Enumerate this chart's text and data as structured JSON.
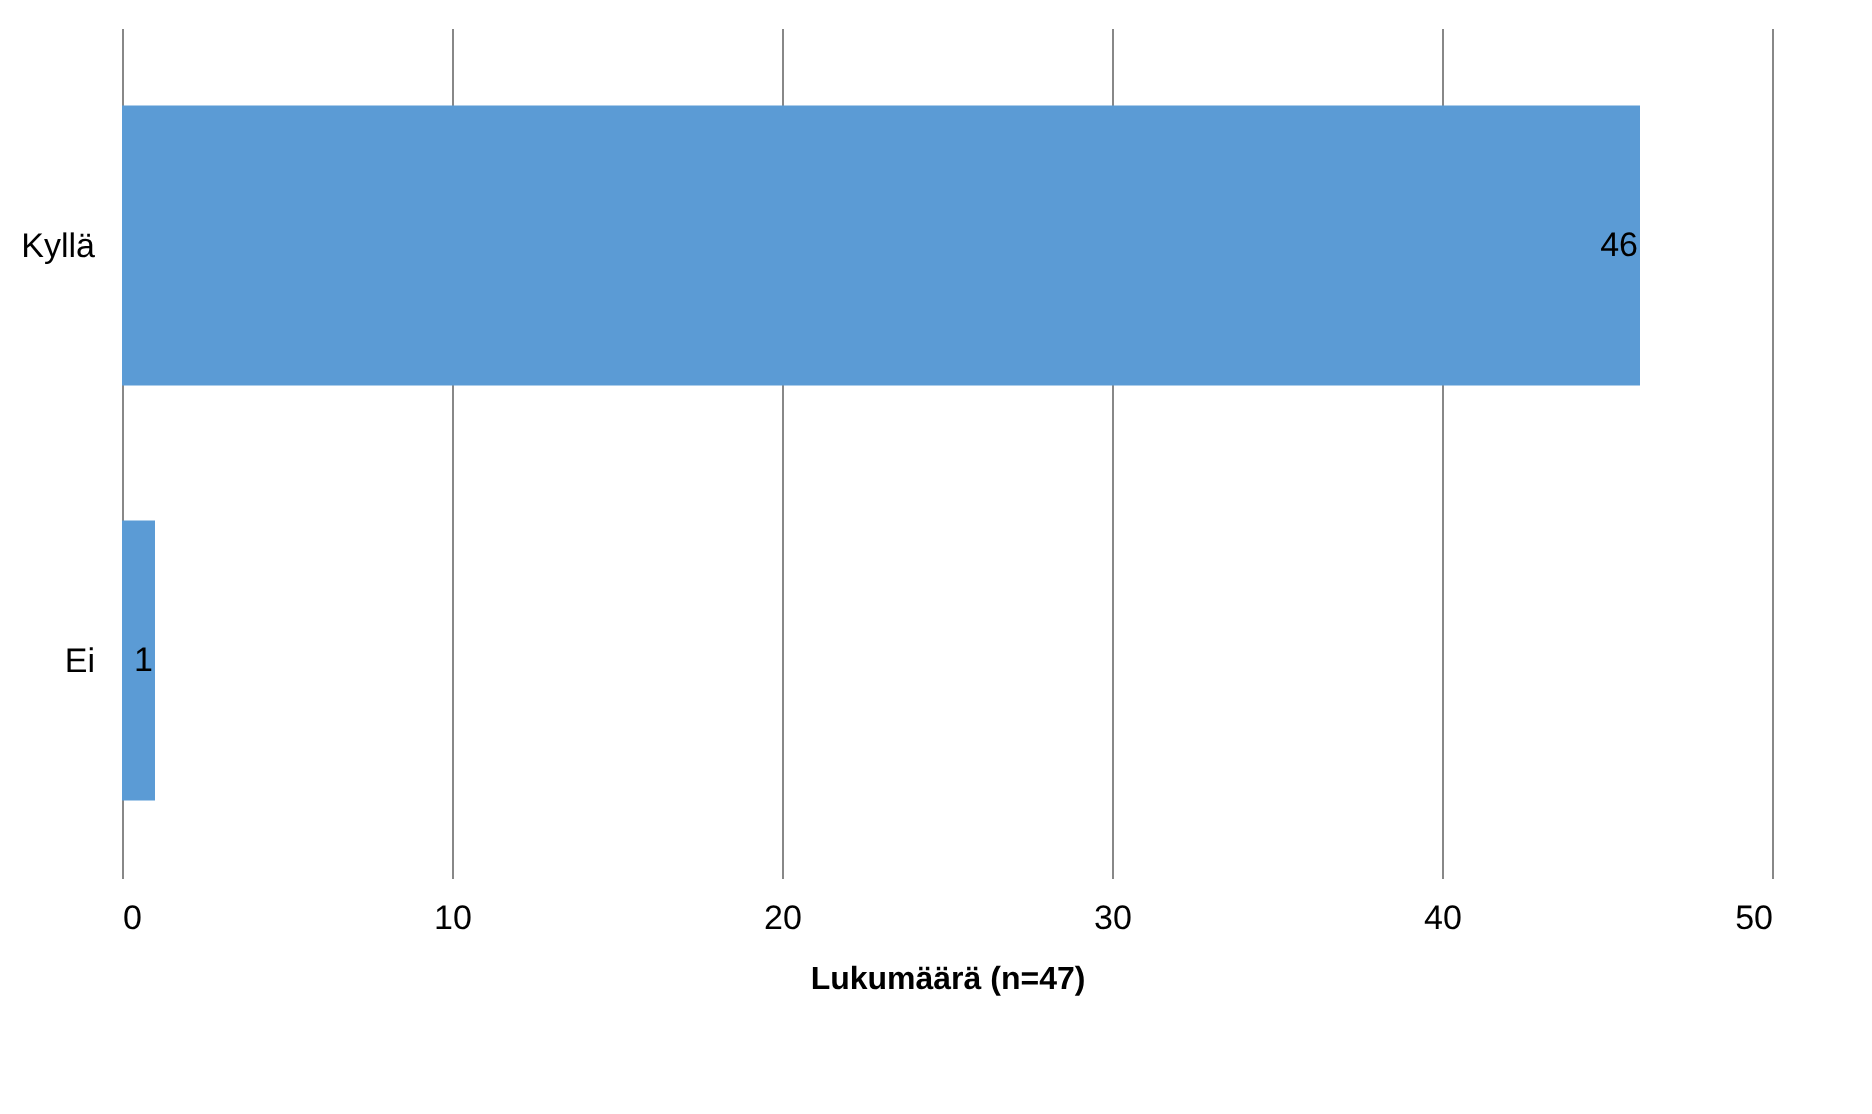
{
  "chart_data": {
    "type": "bar",
    "orientation": "horizontal",
    "xlabel": "Lukumäärä (n=47)",
    "categories": [
      "Kyllä",
      "Ei"
    ],
    "values": [
      46,
      1
    ],
    "color": "#5b9bd5",
    "xlim": [
      0,
      50
    ],
    "xticks": [
      0,
      10,
      20,
      30,
      40,
      50
    ],
    "grid": "x",
    "data_labels": true
  }
}
